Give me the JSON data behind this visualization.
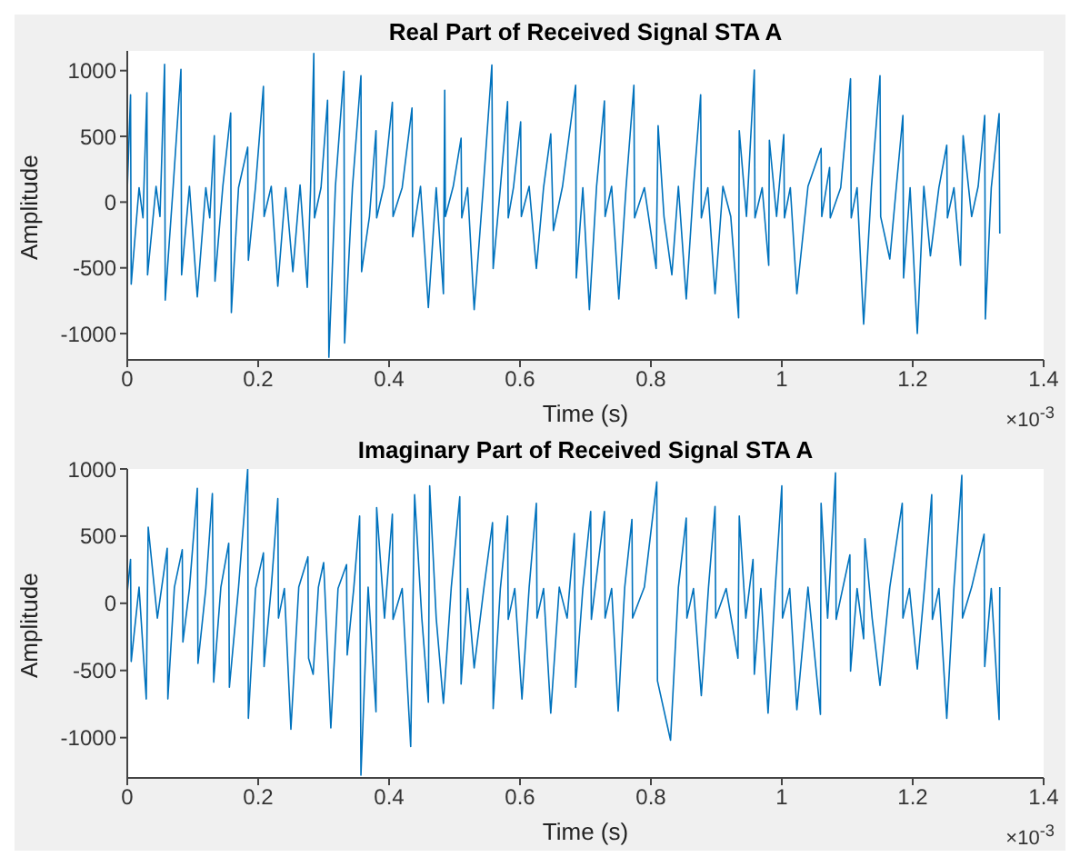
{
  "chart_data": [
    {
      "type": "line",
      "title": "Real Part of Received Signal STA A",
      "xlabel": "Time (s)",
      "ylabel": "Amplitude",
      "annotations": [
        "×10$^{-3}$"
      ],
      "xlim": [
        0,
        1.4
      ],
      "xticks": [
        0,
        0.2,
        0.4,
        0.6,
        0.8,
        1,
        1.2,
        1.4
      ],
      "ylim": [
        -1200,
        1150
      ],
      "yticks": [
        -1000,
        -500,
        0,
        500,
        1000
      ],
      "grid": false,
      "legend": false,
      "x": [
        0,
        0.005,
        0.006,
        0.018,
        0.024,
        0.03,
        0.031,
        0.044,
        0.05,
        0.057,
        0.058,
        0.07,
        0.082,
        0.083,
        0.095,
        0.107,
        0.12,
        0.126,
        0.133,
        0.134,
        0.146,
        0.158,
        0.159,
        0.17,
        0.184,
        0.185,
        0.196,
        0.208,
        0.209,
        0.22,
        0.23,
        0.242,
        0.253,
        0.264,
        0.275,
        0.28,
        0.285,
        0.286,
        0.296,
        0.306,
        0.308,
        0.318,
        0.331,
        0.332,
        0.344,
        0.357,
        0.358,
        0.37,
        0.38,
        0.381,
        0.392,
        0.405,
        0.406,
        0.42,
        0.435,
        0.436,
        0.448,
        0.46,
        0.472,
        0.483,
        0.485,
        0.486,
        0.498,
        0.51,
        0.511,
        0.52,
        0.53,
        0.544,
        0.557,
        0.559,
        0.57,
        0.581,
        0.582,
        0.59,
        0.601,
        0.602,
        0.614,
        0.625,
        0.636,
        0.647,
        0.651,
        0.665,
        0.685,
        0.686,
        0.696,
        0.706,
        0.717,
        0.729,
        0.73,
        0.74,
        0.751,
        0.762,
        0.774,
        0.775,
        0.79,
        0.808,
        0.811,
        0.82,
        0.832,
        0.842,
        0.854,
        0.865,
        0.876,
        0.877,
        0.887,
        0.898,
        0.91,
        0.922,
        0.934,
        0.935,
        0.946,
        0.958,
        0.959,
        0.97,
        0.98,
        0.981,
        0.992,
        1.003,
        1.004,
        1.013,
        1.023,
        1.04,
        1.06,
        1.061,
        1.073,
        1.074,
        1.09,
        1.105,
        1.106,
        1.115,
        1.125,
        1.137,
        1.15,
        1.151,
        1.165,
        1.175,
        1.185,
        1.186,
        1.196,
        1.207,
        1.217,
        1.227,
        1.24,
        1.252,
        1.253,
        1.263,
        1.273,
        1.277,
        1.29,
        1.3,
        1.31,
        1.311,
        1.32,
        1.332,
        1.333
      ],
      "series": [
        {
          "color": "#0072bd",
          "values": [
            90,
            817,
            -625,
            110,
            -120,
            832,
            -553,
            120,
            -110,
            1048,
            -745,
            110,
            1010,
            -553,
            120,
            -721,
            110,
            -120,
            505,
            -601,
            120,
            678,
            -841,
            110,
            418,
            -442,
            120,
            880,
            -110,
            120,
            -639,
            110,
            -529,
            130,
            -649,
            100,
            1130,
            -120,
            110,
            774,
            -1180,
            120,
            995,
            -1072,
            110,
            962,
            -529,
            -110,
            543,
            -120,
            120,
            759,
            -110,
            110,
            716,
            -264,
            120,
            -803,
            110,
            -697,
            851,
            -110,
            120,
            486,
            -120,
            110,
            -817,
            120,
            1043,
            -505,
            110,
            764,
            -120,
            110,
            610,
            -110,
            120,
            -505,
            110,
            519,
            -216,
            120,
            889,
            -577,
            110,
            -817,
            120,
            769,
            -110,
            120,
            -736,
            110,
            889,
            -120,
            110,
            -505,
            582,
            -110,
            -553,
            120,
            -736,
            110,
            817,
            -120,
            110,
            -697,
            120,
            -110,
            -880,
            543,
            -110,
            1005,
            -120,
            110,
            -481,
            471,
            -110,
            514,
            -120,
            110,
            -697,
            120,
            409,
            -110,
            264,
            -120,
            110,
            938,
            -120,
            110,
            -928,
            120,
            962,
            -110,
            -433,
            120,
            659,
            -577,
            110,
            -1000,
            120,
            -409,
            110,
            433,
            -120,
            110,
            -481,
            505,
            -110,
            120,
            659,
            -889,
            110,
            673,
            -240
          ]
        }
      ]
    },
    {
      "type": "line",
      "title": "Imaginary Part of Received Signal STA A",
      "xlabel": "Time (s)",
      "ylabel": "Amplitude",
      "annotations": [
        "×10$^{-3}$"
      ],
      "xlim": [
        0,
        1.4
      ],
      "xticks": [
        0,
        0.2,
        0.4,
        0.6,
        0.8,
        1,
        1.2,
        1.4
      ],
      "ylim": [
        -1300,
        1000
      ],
      "yticks": [
        -1000,
        -500,
        0,
        500,
        1000
      ],
      "grid": false,
      "legend": false,
      "x": [
        0,
        0.005,
        0.006,
        0.018,
        0.029,
        0.032,
        0.046,
        0.061,
        0.062,
        0.072,
        0.084,
        0.085,
        0.095,
        0.107,
        0.108,
        0.12,
        0.13,
        0.132,
        0.143,
        0.155,
        0.156,
        0.17,
        0.184,
        0.185,
        0.196,
        0.208,
        0.209,
        0.22,
        0.23,
        0.231,
        0.24,
        0.25,
        0.262,
        0.276,
        0.277,
        0.284,
        0.292,
        0.3,
        0.311,
        0.322,
        0.335,
        0.336,
        0.346,
        0.355,
        0.357,
        0.368,
        0.38,
        0.381,
        0.393,
        0.405,
        0.406,
        0.42,
        0.433,
        0.439,
        0.45,
        0.46,
        0.462,
        0.472,
        0.483,
        0.495,
        0.508,
        0.51,
        0.52,
        0.53,
        0.545,
        0.558,
        0.559,
        0.57,
        0.581,
        0.582,
        0.592,
        0.603,
        0.614,
        0.625,
        0.626,
        0.636,
        0.647,
        0.66,
        0.672,
        0.683,
        0.685,
        0.696,
        0.708,
        0.709,
        0.729,
        0.73,
        0.74,
        0.75,
        0.76,
        0.771,
        0.772,
        0.79,
        0.809,
        0.81,
        0.83,
        0.842,
        0.854,
        0.855,
        0.865,
        0.877,
        0.888,
        0.898,
        0.899,
        0.915,
        0.933,
        0.935,
        0.945,
        0.956,
        0.958,
        0.968,
        0.979,
        0.99,
        1.0,
        1.001,
        1.012,
        1.023,
        1.04,
        1.059,
        1.06,
        1.07,
        1.082,
        1.083,
        1.093,
        1.104,
        1.105,
        1.115,
        1.125,
        1.127,
        1.138,
        1.15,
        1.165,
        1.184,
        1.185,
        1.195,
        1.207,
        1.218,
        1.229,
        1.23,
        1.24,
        1.252,
        1.263,
        1.275,
        1.276,
        1.29,
        1.309,
        1.31,
        1.32,
        1.332,
        1.333
      ],
      "series": [
        {
          "color": "#0072bd",
          "values": [
            80,
            327,
            -433,
            120,
            -712,
            567,
            -110,
            409,
            -712,
            120,
            399,
            -288,
            110,
            856,
            -447,
            110,
            817,
            -587,
            120,
            447,
            -625,
            120,
            1000,
            -856,
            110,
            375,
            -471,
            120,
            779,
            -110,
            110,
            -938,
            120,
            346,
            -409,
            -529,
            120,
            303,
            -928,
            110,
            288,
            -385,
            110,
            649,
            -1280,
            120,
            -808,
            712,
            -110,
            663,
            -120,
            110,
            -1067,
            808,
            -110,
            -736,
            875,
            -110,
            -745,
            120,
            793,
            -601,
            110,
            -481,
            120,
            601,
            -784,
            110,
            649,
            -120,
            110,
            -712,
            120,
            745,
            -110,
            110,
            -817,
            120,
            -110,
            519,
            -625,
            110,
            683,
            -120,
            683,
            -110,
            110,
            -803,
            120,
            625,
            -110,
            120,
            904,
            -577,
            -1019,
            120,
            635,
            -110,
            110,
            -688,
            120,
            721,
            -110,
            110,
            -409,
            649,
            -110,
            327,
            -529,
            110,
            -817,
            120,
            875,
            -110,
            110,
            -793,
            120,
            -827,
            745,
            -110,
            971,
            -120,
            110,
            361,
            -505,
            110,
            -264,
            481,
            -110,
            -611,
            120,
            745,
            -110,
            110,
            -490,
            120,
            808,
            -120,
            110,
            -856,
            120,
            952,
            -110,
            120,
            514,
            -471,
            110,
            -865,
            120
          ]
        }
      ]
    }
  ]
}
